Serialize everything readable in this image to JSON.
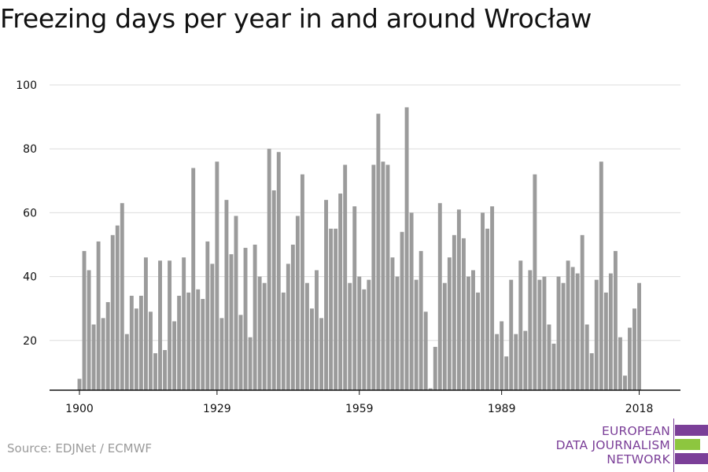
{
  "title": "Freezing days per year in and around Wrocław",
  "source": "Source: EDJNet / ECMWF",
  "logo": {
    "line1": "EUROPEAN",
    "line2": "DATA JOURNALISM",
    "line3": "NETWORK",
    "colors": {
      "purple": "#7b3f98",
      "green": "#8dc63f"
    }
  },
  "chart_data": {
    "type": "bar",
    "title": "Freezing days per year in and around Wrocław",
    "xlabel": "",
    "ylabel": "",
    "x": [
      1900,
      1901,
      1902,
      1903,
      1904,
      1905,
      1906,
      1907,
      1908,
      1909,
      1910,
      1911,
      1912,
      1913,
      1914,
      1915,
      1916,
      1917,
      1918,
      1919,
      1920,
      1921,
      1922,
      1923,
      1924,
      1925,
      1926,
      1927,
      1928,
      1929,
      1930,
      1931,
      1932,
      1933,
      1934,
      1935,
      1936,
      1937,
      1938,
      1939,
      1940,
      1941,
      1942,
      1943,
      1944,
      1945,
      1946,
      1947,
      1948,
      1949,
      1950,
      1951,
      1952,
      1953,
      1954,
      1955,
      1956,
      1957,
      1958,
      1959,
      1960,
      1961,
      1962,
      1963,
      1964,
      1965,
      1966,
      1967,
      1968,
      1969,
      1970,
      1971,
      1972,
      1973,
      1974,
      1975,
      1976,
      1977,
      1978,
      1979,
      1980,
      1981,
      1982,
      1983,
      1984,
      1985,
      1986,
      1987,
      1988,
      1989,
      1990,
      1991,
      1992,
      1993,
      1994,
      1995,
      1996,
      1997,
      1998,
      1999,
      2000,
      2001,
      2002,
      2003,
      2004,
      2005,
      2006,
      2007,
      2008,
      2009,
      2010,
      2011,
      2012,
      2013,
      2014,
      2015,
      2016,
      2017,
      2018
    ],
    "values": [
      8,
      48,
      42,
      25,
      51,
      27,
      32,
      53,
      56,
      63,
      22,
      34,
      30,
      34,
      46,
      29,
      16,
      45,
      17,
      45,
      26,
      34,
      46,
      35,
      74,
      36,
      33,
      51,
      44,
      76,
      27,
      64,
      47,
      59,
      28,
      49,
      21,
      50,
      40,
      38,
      80,
      67,
      79,
      35,
      44,
      50,
      59,
      72,
      38,
      30,
      42,
      27,
      64,
      55,
      55,
      66,
      75,
      38,
      62,
      40,
      36,
      39,
      75,
      91,
      76,
      75,
      46,
      40,
      54,
      93,
      60,
      39,
      48,
      29,
      5,
      18,
      63,
      38,
      46,
      53,
      61,
      52,
      40,
      42,
      35,
      60,
      55,
      62,
      22,
      26,
      15,
      39,
      22,
      45,
      23,
      42,
      72,
      39,
      40,
      25,
      19,
      40,
      38,
      45,
      43,
      41,
      53,
      25,
      16,
      39,
      76,
      35,
      41,
      48,
      21,
      9,
      24,
      30,
      38
    ],
    "xticks": [
      1900,
      1929,
      1959,
      1989,
      2018
    ],
    "yticks": [
      20,
      40,
      60,
      80,
      100
    ],
    "xlim": [
      1900,
      2018
    ],
    "ylim": [
      5,
      100
    ],
    "grid": true,
    "bar_color": "#9b9b9b"
  }
}
